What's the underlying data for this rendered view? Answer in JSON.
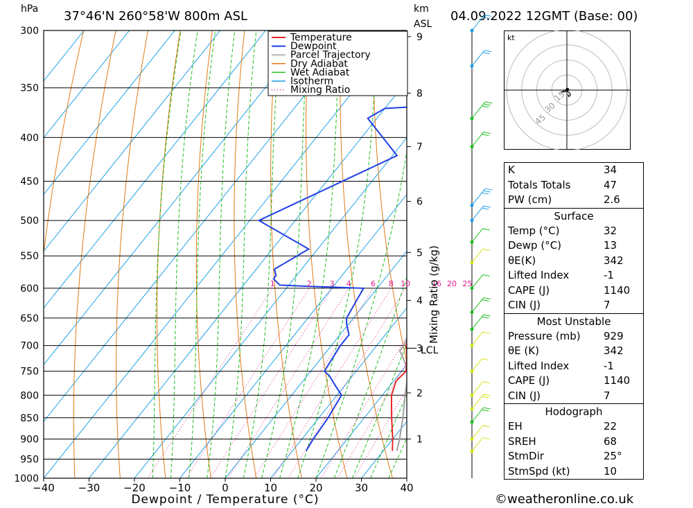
{
  "header": {
    "pressure_unit": "hPa",
    "location": "37°46'N  260°58'W  800m  ASL",
    "km_unit": "km",
    "asl_unit": "ASL",
    "datetime": "04.09.2022  12GMT  (Base: 00)"
  },
  "chart_data": {
    "type": "line",
    "title": "",
    "xlabel": "Dewpoint / Temperature (°C)",
    "ylabel": "hPa",
    "right_axis_label": "Mixing Ratio (g/kg)",
    "x_ticks": [
      -40,
      -30,
      -20,
      -10,
      0,
      10,
      20,
      30,
      40
    ],
    "pressure_levels": [
      300,
      350,
      400,
      450,
      500,
      550,
      600,
      650,
      700,
      750,
      800,
      850,
      900,
      950,
      1000
    ],
    "km_ticks": [
      1,
      2,
      3,
      4,
      5,
      6,
      7,
      8,
      9
    ],
    "lcl_label": "LCL",
    "mixing_ratio_labels": [
      "1",
      "2",
      "3",
      "4",
      "6",
      "8",
      "10",
      "16",
      "20",
      "25"
    ],
    "legend": [
      "Temperature",
      "Dewpoint",
      "Parcel Trajectory",
      "Dry Adiabat",
      "Wet Adiabat",
      "Isotherm",
      "Mixing Ratio"
    ],
    "colors": {
      "temperature": "#e8262a",
      "dewpoint": "#1f3fe6",
      "parcel": "#a0a0a0",
      "dry_adiabat": "#e07a14",
      "wet_adiabat": "#1fbf1f",
      "isotherm": "#1a9ee6",
      "mixing_ratio": "#e01a8c"
    },
    "series": [
      {
        "name": "Temperature",
        "points": [
          [
            929,
            32.0
          ],
          [
            900,
            30.0
          ],
          [
            850,
            26.0
          ],
          [
            800,
            22.0
          ],
          [
            770,
            20.5
          ],
          [
            750,
            21.0
          ],
          [
            720,
            18.5
          ],
          [
            700,
            16.5
          ],
          [
            650,
            13.0
          ],
          [
            600,
            9.0
          ],
          [
            590,
            8.5
          ],
          [
            575,
            8.5
          ],
          [
            550,
            6.5
          ],
          [
            500,
            1.5
          ],
          [
            450,
            -5.0
          ],
          [
            400,
            -12.0
          ],
          [
            350,
            -20.0
          ],
          [
            320,
            -26.0
          ],
          [
            300,
            -30.0
          ]
        ]
      },
      {
        "name": "Dewpoint",
        "points": [
          [
            929,
            13.0
          ],
          [
            900,
            12.5
          ],
          [
            850,
            12.0
          ],
          [
            800,
            11.0
          ],
          [
            780,
            8.0
          ],
          [
            760,
            5.0
          ],
          [
            750,
            3.0
          ],
          [
            700,
            2.0
          ],
          [
            680,
            2.0
          ],
          [
            660,
            -0.5
          ],
          [
            650,
            -1.5
          ],
          [
            600,
            -3.0
          ],
          [
            597,
            -15.0
          ],
          [
            595,
            -22.0
          ],
          [
            585,
            -24.5
          ],
          [
            580,
            -24.5
          ],
          [
            570,
            -26.0
          ],
          [
            540,
            -22.0
          ],
          [
            500,
            -38.0
          ],
          [
            420,
            -19.0
          ],
          [
            380,
            -32.0
          ],
          [
            370,
            -30.0
          ],
          [
            368,
            -23.0
          ],
          [
            350,
            -18.0
          ],
          [
            345,
            -25.0
          ],
          [
            337,
            -18.0
          ],
          [
            320,
            -25.0
          ],
          [
            300,
            -25.0
          ]
        ]
      },
      {
        "name": "Parcel Trajectory",
        "points": [
          [
            929,
            33.0
          ],
          [
            900,
            31.5
          ],
          [
            850,
            28.5
          ],
          [
            800,
            25.0
          ],
          [
            750,
            21.5
          ],
          [
            720,
            17.5
          ],
          [
            710,
            16.0
          ],
          [
            700,
            16.0
          ],
          [
            650,
            13.5
          ],
          [
            600,
            10.0
          ],
          [
            550,
            6.5
          ],
          [
            500,
            1.5
          ],
          [
            450,
            -3.5
          ],
          [
            400,
            -9.5
          ],
          [
            350,
            -16.5
          ],
          [
            300,
            -24.5
          ]
        ]
      }
    ],
    "winds": [
      {
        "p": 930,
        "color": "#d6e21a",
        "spd": 10
      },
      {
        "p": 900,
        "color": "#d6e21a",
        "spd": 10
      },
      {
        "p": 860,
        "color": "#1fbf1f",
        "spd": 15
      },
      {
        "p": 830,
        "color": "#d6e21a",
        "spd": 15
      },
      {
        "p": 800,
        "color": "#d6e21a",
        "spd": 10
      },
      {
        "p": 750,
        "color": "#d6e21a",
        "spd": 5
      },
      {
        "p": 700,
        "color": "#d6e21a",
        "spd": 10
      },
      {
        "p": 670,
        "color": "#1fbf1f",
        "spd": 15
      },
      {
        "p": 640,
        "color": "#1fbf1f",
        "spd": 15
      },
      {
        "p": 600,
        "color": "#1fbf1f",
        "spd": 10
      },
      {
        "p": 560,
        "color": "#d6e21a",
        "spd": 10
      },
      {
        "p": 530,
        "color": "#1fbf1f",
        "spd": 10
      },
      {
        "p": 500,
        "color": "#1a9ee6",
        "spd": 15
      },
      {
        "p": 480,
        "color": "#1a9ee6",
        "spd": 25
      },
      {
        "p": 410,
        "color": "#1fbf1f",
        "spd": 15
      },
      {
        "p": 380,
        "color": "#1fbf1f",
        "spd": 25
      },
      {
        "p": 330,
        "color": "#1a9ee6",
        "spd": 20
      },
      {
        "p": 300,
        "color": "#1a9ee6",
        "spd": 20
      }
    ],
    "hodograph": {
      "unit": "kt",
      "ring_labels": [
        "15",
        "30",
        "45"
      ],
      "points": [
        [
          0.5,
          0.5
        ],
        [
          -0.5,
          -1.0
        ],
        [
          -3.0,
          -2.0
        ],
        [
          -4.5,
          -1.5
        ],
        [
          -6.0,
          -2.5
        ],
        [
          -2.0,
          0.0
        ],
        [
          1.5,
          -2.0
        ],
        [
          3.0,
          -3.0
        ],
        [
          3.5,
          -5.0
        ],
        [
          2.0,
          -6.5
        ],
        [
          1.0,
          -4.0
        ]
      ]
    }
  },
  "indices": [
    {
      "label": "K",
      "value": "34"
    },
    {
      "label": "Totals Totals",
      "value": "47"
    },
    {
      "label": "PW (cm)",
      "value": "2.6"
    }
  ],
  "surface": {
    "title": "Surface",
    "rows": [
      {
        "label": "Temp (°C)",
        "value": "32"
      },
      {
        "label": "Dewp (°C)",
        "value": "13"
      },
      {
        "label": "θE(K)",
        "value": "342"
      },
      {
        "label": "Lifted Index",
        "value": "-1"
      },
      {
        "label": "CAPE (J)",
        "value": "1140"
      },
      {
        "label": "CIN (J)",
        "value": "7"
      }
    ]
  },
  "most_unstable": {
    "title": "Most Unstable",
    "rows": [
      {
        "label": "Pressure (mb)",
        "value": "929"
      },
      {
        "label": "θE (K)",
        "value": "342"
      },
      {
        "label": "Lifted Index",
        "value": "-1"
      },
      {
        "label": "CAPE (J)",
        "value": "1140"
      },
      {
        "label": "CIN (J)",
        "value": "7"
      }
    ]
  },
  "hodograph_table": {
    "title": "Hodograph",
    "rows": [
      {
        "label": "EH",
        "value": "22"
      },
      {
        "label": "SREH",
        "value": "68"
      },
      {
        "label": "StmDir",
        "value": "25°"
      },
      {
        "label": "StmSpd (kt)",
        "value": "10"
      }
    ]
  },
  "footer": {
    "copyright": "©weatheronline.co.uk"
  }
}
